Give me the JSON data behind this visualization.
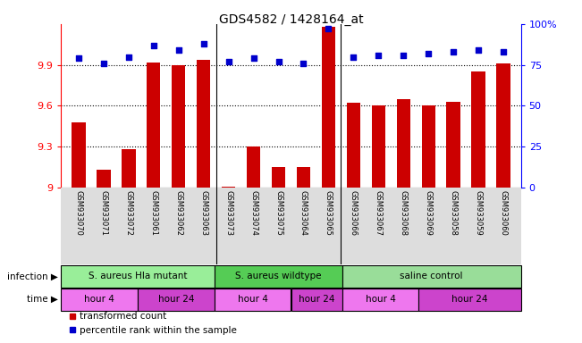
{
  "title": "GDS4582 / 1428164_at",
  "samples": [
    "GSM933070",
    "GSM933071",
    "GSM933072",
    "GSM933061",
    "GSM933062",
    "GSM933063",
    "GSM933073",
    "GSM933074",
    "GSM933075",
    "GSM933064",
    "GSM933065",
    "GSM933066",
    "GSM933067",
    "GSM933068",
    "GSM933069",
    "GSM933058",
    "GSM933059",
    "GSM933060"
  ],
  "red_values": [
    9.48,
    9.13,
    9.28,
    9.92,
    9.9,
    9.94,
    9.01,
    9.3,
    9.15,
    9.15,
    10.18,
    9.62,
    9.6,
    9.65,
    9.6,
    9.63,
    9.85,
    9.91
  ],
  "blue_values": [
    79,
    76,
    80,
    87,
    84,
    88,
    77,
    79,
    77,
    76,
    97,
    80,
    81,
    81,
    82,
    83,
    84,
    83
  ],
  "ylim_left": [
    9.0,
    10.2
  ],
  "ylim_right": [
    0,
    100
  ],
  "yticks_left": [
    9.0,
    9.3,
    9.6,
    9.9
  ],
  "ytick_left_labels": [
    "9",
    "9.3",
    "9.6",
    "9.9"
  ],
  "yticks_right": [
    0,
    25,
    50,
    75,
    100
  ],
  "ytick_right_labels": [
    "0",
    "25",
    "50",
    "75",
    "100%"
  ],
  "infection_groups": [
    {
      "label": "S. aureus Hla mutant",
      "start": 0,
      "end": 6,
      "color": "#99EE99"
    },
    {
      "label": "S. aureus wildtype",
      "start": 6,
      "end": 11,
      "color": "#55CC55"
    },
    {
      "label": "saline control",
      "start": 11,
      "end": 18,
      "color": "#99DD99"
    }
  ],
  "time_groups": [
    {
      "label": "hour 4",
      "start": 0,
      "end": 3,
      "color": "#EE77EE"
    },
    {
      "label": "hour 24",
      "start": 3,
      "end": 6,
      "color": "#CC44CC"
    },
    {
      "label": "hour 4",
      "start": 6,
      "end": 9,
      "color": "#EE77EE"
    },
    {
      "label": "hour 24",
      "start": 9,
      "end": 11,
      "color": "#CC44CC"
    },
    {
      "label": "hour 4",
      "start": 11,
      "end": 14,
      "color": "#EE77EE"
    },
    {
      "label": "hour 24",
      "start": 14,
      "end": 18,
      "color": "#CC44CC"
    }
  ],
  "group_dividers": [
    5.5,
    10.5
  ],
  "bar_color": "#CC0000",
  "dot_color": "#0000CC",
  "infection_label": "infection",
  "time_label": "time",
  "legend_red": "transformed count",
  "legend_blue": "percentile rank within the sample",
  "bar_width": 0.55
}
